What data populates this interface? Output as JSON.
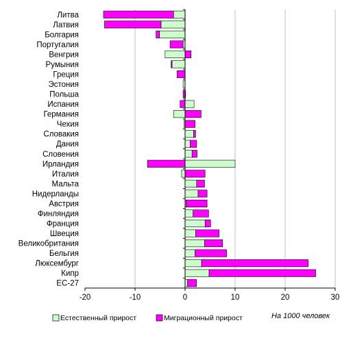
{
  "chart_data": {
    "type": "bar",
    "orientation": "horizontal",
    "stacked": true,
    "categories": [
      "Литва",
      "Латвия",
      "Болгария",
      "Португалия",
      "Венгрия",
      "Румыния",
      "Греция",
      "Эстония",
      "Польша",
      "Испания",
      "Германия",
      "Чехия",
      "Словакия",
      "Дания",
      "Словения",
      "Ирландия",
      "Италия",
      "Мальта",
      "Нидерланды",
      "Австрия",
      "Финляндия",
      "Франция",
      "Швеция",
      "Великобритания",
      "Бельгия",
      "Люксембург",
      "Кипр",
      "ЕС-27"
    ],
    "series": [
      {
        "name": "Естественный прирост",
        "color": "#ccffcc",
        "values": [
          -2.3,
          -4.8,
          -5.1,
          -0.4,
          -4.0,
          -2.6,
          0.0,
          -0.4,
          0.1,
          1.8,
          -2.3,
          -0.2,
          1.7,
          1.0,
          1.4,
          10.0,
          -0.7,
          2.3,
          2.6,
          0.2,
          1.6,
          4.0,
          2.1,
          3.9,
          2.0,
          3.3,
          4.8,
          0.5
        ]
      },
      {
        "name": "Миграционный прирост",
        "color": "#ff00ff",
        "values": [
          -14.0,
          -11.3,
          -0.7,
          -2.6,
          1.2,
          -0.2,
          -1.6,
          0.0,
          -0.4,
          -1.0,
          3.2,
          2.0,
          0.4,
          1.3,
          1.0,
          -7.5,
          4.0,
          1.6,
          1.8,
          4.2,
          3.1,
          1.1,
          4.7,
          3.6,
          6.3,
          21.3,
          21.3,
          1.8
        ]
      }
    ],
    "xlim": [
      -20,
      30
    ],
    "xticks": [
      -20,
      -10,
      0,
      10,
      20,
      30
    ],
    "unit_label": "На 1000 человек",
    "grid": true,
    "legend_position": "bottom"
  },
  "legend": {
    "natural": "Естественный прирост",
    "migration": "Миграционный прирост"
  },
  "unit_note": "На 1000 человек",
  "colors": {
    "natural": "#ccffcc",
    "migration": "#ff00ff",
    "grid": "#bfbfbf",
    "edge": "#000000"
  }
}
